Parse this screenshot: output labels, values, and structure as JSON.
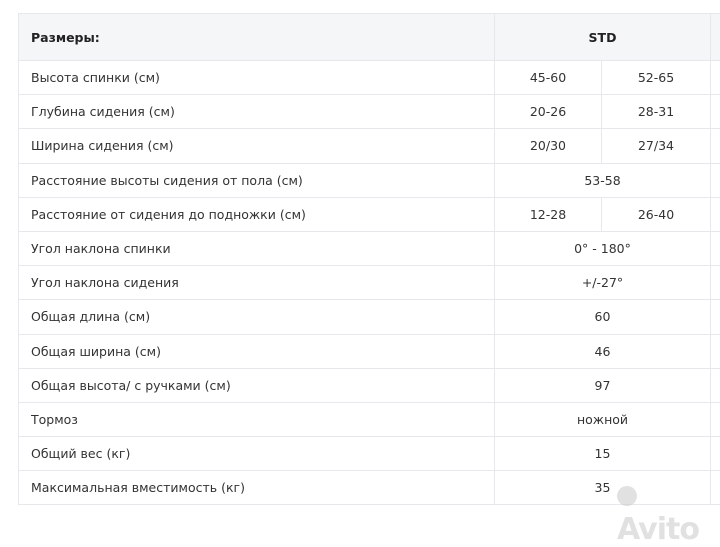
{
  "header": {
    "label": "Размеры:",
    "std": "STD"
  },
  "rows": [
    {
      "label": "Высота спинки (см)",
      "a": "45-60",
      "b": "52-65"
    },
    {
      "label": "Глубина сидения (см)",
      "a": "20-26",
      "b": "28-31"
    },
    {
      "label": "Ширина сидения (см)",
      "a": "20/30",
      "b": "27/34"
    },
    {
      "label": "Расстояние высоты сидения от пола (см)",
      "v": "53-58"
    },
    {
      "label": "Расстояние от сидения до подножки (см)",
      "a": "12-28",
      "b": "26-40"
    },
    {
      "label": "Угол наклона спинки",
      "v": "0° - 180°"
    },
    {
      "label": "Угол наклона сидения",
      "v": "+/-27°"
    },
    {
      "label": "Общая длина (см)",
      "v": "60"
    },
    {
      "label": "Общая ширина (см)",
      "v": "46"
    },
    {
      "label": "Общая высота/ с ручками (см)",
      "v": "97"
    },
    {
      "label": "Тормоз",
      "v": "ножной"
    },
    {
      "label": "Общий вес (кг)",
      "v": "15"
    },
    {
      "label": "Максимальная вместимость (кг)",
      "v": "35"
    }
  ],
  "watermark": "Avito"
}
